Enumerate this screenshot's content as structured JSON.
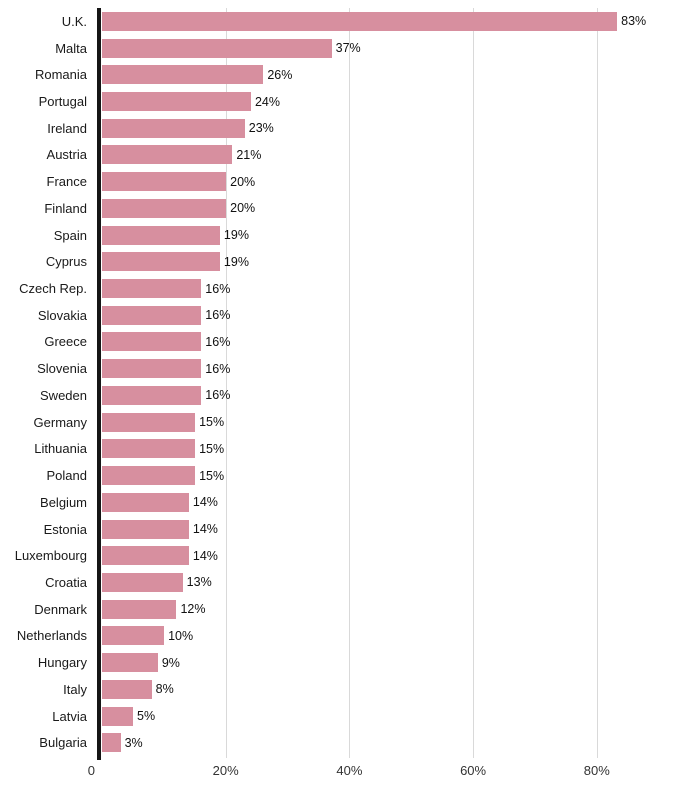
{
  "chart_data": {
    "type": "bar",
    "orientation": "horizontal",
    "title": "",
    "xlabel": "",
    "ylabel": "",
    "categories": [
      "U.K.",
      "Malta",
      "Romania",
      "Portugal",
      "Ireland",
      "Austria",
      "France",
      "Finland",
      "Spain",
      "Cyprus",
      "Czech Rep.",
      "Slovakia",
      "Greece",
      "Slovenia",
      "Sweden",
      "Germany",
      "Lithuania",
      "Poland",
      "Belgium",
      "Estonia",
      "Luxembourg",
      "Croatia",
      "Denmark",
      "Netherlands",
      "Hungary",
      "Italy",
      "Latvia",
      "Bulgaria"
    ],
    "values": [
      83,
      37,
      26,
      24,
      23,
      21,
      20,
      20,
      19,
      19,
      16,
      16,
      16,
      16,
      16,
      15,
      15,
      15,
      14,
      14,
      14,
      13,
      12,
      10,
      9,
      8,
      5,
      3
    ],
    "value_labels": [
      "83%",
      "37%",
      "26%",
      "24%",
      "23%",
      "21%",
      "20%",
      "20%",
      "19%",
      "19%",
      "16%",
      "16%",
      "16%",
      "16%",
      "16%",
      "15%",
      "15%",
      "15%",
      "14%",
      "14%",
      "14%",
      "13%",
      "12%",
      "10%",
      "9%",
      "8%",
      "5%",
      "3%"
    ],
    "xlim": [
      0,
      92
    ],
    "ticks": [
      {
        "value": 0,
        "label": "0"
      },
      {
        "value": 20,
        "label": "20%"
      },
      {
        "value": 40,
        "label": "40%"
      },
      {
        "value": 60,
        "label": "60%"
      },
      {
        "value": 80,
        "label": "80%"
      }
    ],
    "grid": "vertical",
    "legend": "none",
    "bar_color": "#d78f9f",
    "axis_color": "#161616",
    "gridline_color": "#d9d9d9"
  }
}
